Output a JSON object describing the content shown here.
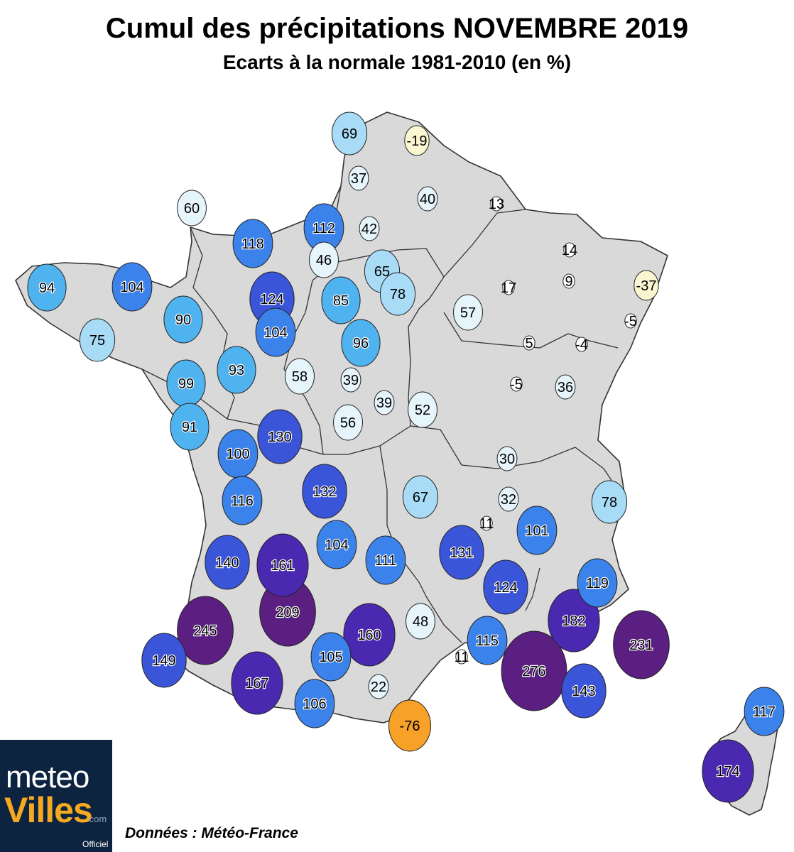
{
  "title": "Cumul des précipitations NOVEMBRE 2019",
  "subtitle": "Ecarts à la normale 1981-2010 (en %)",
  "source": "Données : Météo-France",
  "logo": {
    "line1": "meteo",
    "line2": "Villes",
    "suffix": ".com",
    "tag": "Officiel"
  },
  "colors": {
    "land": "#d9d9d9",
    "border": "#333333",
    "negative_strong": "#f7a128",
    "negative_weak": "#fbf6d2",
    "near_zero": "#ffffff",
    "low": "#e6f4fc",
    "medium_low": "#a8dcf6",
    "medium": "#4fb3f0",
    "high": "#3b82ea",
    "very_high": "#3a55d8",
    "extreme": "#4a28b0",
    "max": "#5a1f80"
  },
  "values": [
    69,
    -19,
    37,
    40,
    13,
    60,
    112,
    42,
    118,
    46,
    65,
    14,
    94,
    104,
    124,
    85,
    78,
    17,
    9,
    -37,
    90,
    57,
    -5,
    75,
    104,
    96,
    5,
    -4,
    93,
    58,
    39,
    99,
    -5,
    36,
    39,
    52,
    56,
    91,
    130,
    100,
    30,
    78,
    67,
    132,
    116,
    32,
    11,
    101,
    140,
    161,
    104,
    111,
    131,
    124,
    119,
    182,
    209,
    245,
    48,
    160,
    115,
    231,
    149,
    105,
    11,
    276,
    167,
    22,
    143,
    106,
    117,
    -76,
    174
  ]
}
